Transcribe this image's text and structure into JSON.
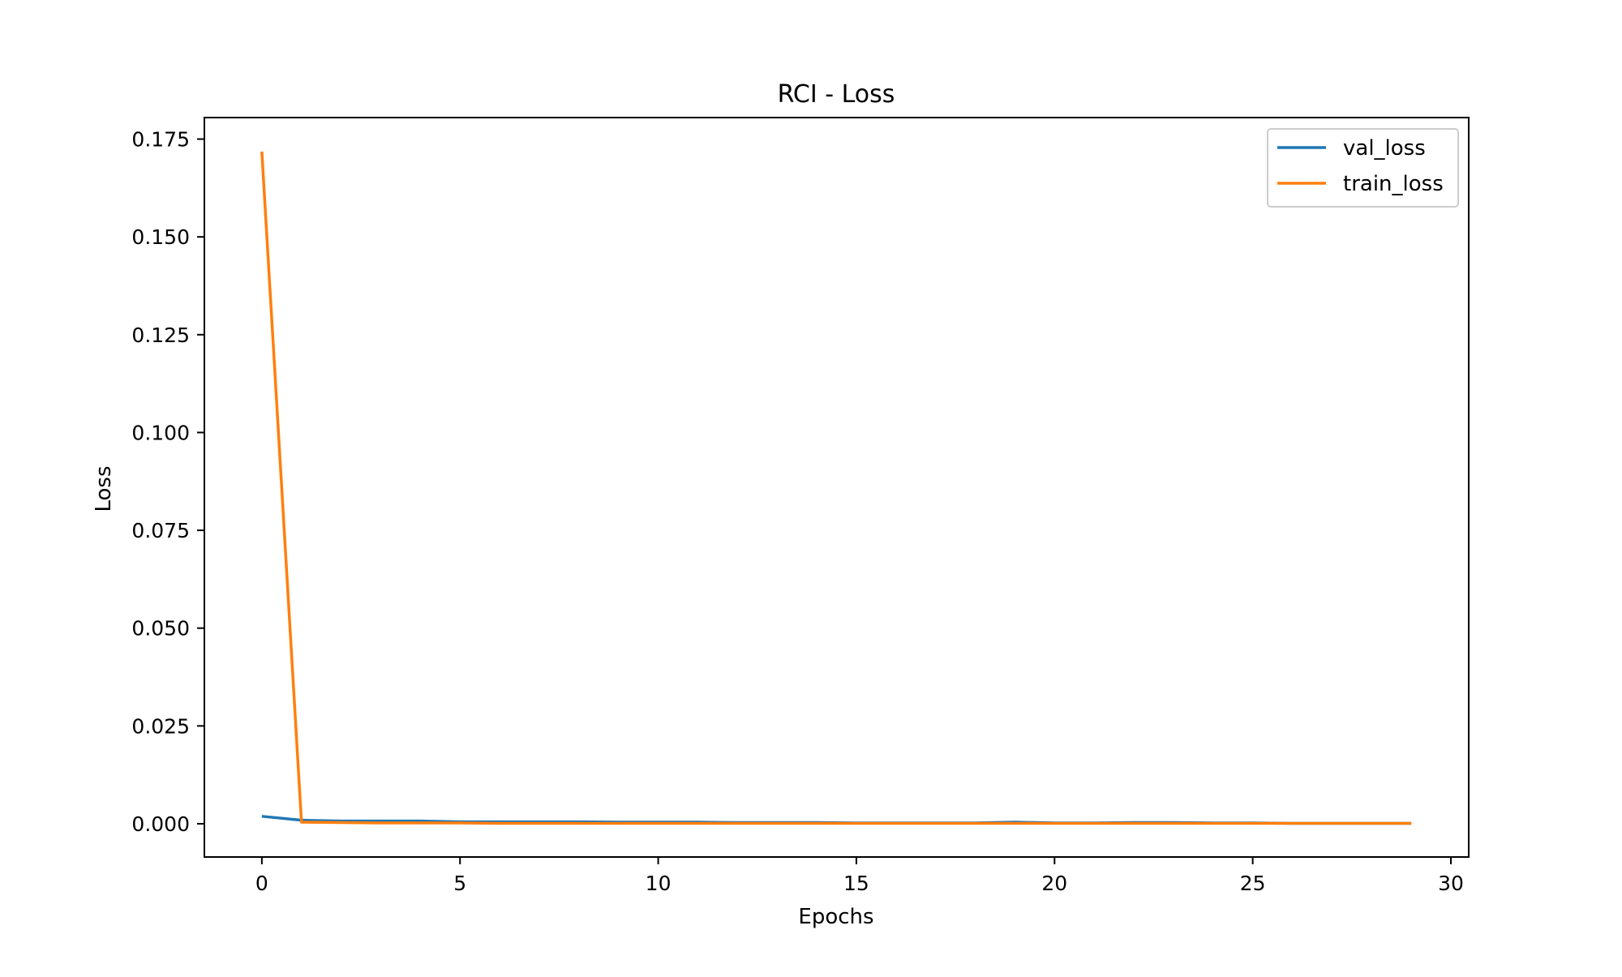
{
  "chart_data": {
    "type": "line",
    "title": "RCI - Loss",
    "xlabel": "Epochs",
    "ylabel": "Loss",
    "xlim": [
      -1.45,
      30.45
    ],
    "ylim": [
      -0.0085,
      0.1805
    ],
    "xticks": [
      0,
      5,
      10,
      15,
      20,
      25,
      30
    ],
    "xtick_labels": [
      "0",
      "5",
      "10",
      "15",
      "20",
      "25",
      "30"
    ],
    "yticks": [
      0.0,
      0.025,
      0.05,
      0.075,
      0.1,
      0.125,
      0.15,
      0.175
    ],
    "ytick_labels": [
      "0.000",
      "0.025",
      "0.050",
      "0.075",
      "0.100",
      "0.125",
      "0.150",
      "0.175"
    ],
    "grid": false,
    "legend": {
      "position": "upper right"
    },
    "x": [
      0,
      1,
      2,
      3,
      4,
      5,
      6,
      7,
      8,
      9,
      10,
      11,
      12,
      13,
      14,
      15,
      16,
      17,
      18,
      19,
      20,
      21,
      22,
      23,
      24,
      25,
      26,
      27,
      28,
      29
    ],
    "series": [
      {
        "name": "val_loss",
        "color": "#1f77b4",
        "values": [
          0.0019,
          0.0009,
          0.0007,
          0.0007,
          0.0007,
          0.0005,
          0.0005,
          0.0005,
          0.0005,
          0.0004,
          0.0004,
          0.0004,
          0.0003,
          0.0003,
          0.0003,
          0.0002,
          0.0002,
          0.0002,
          0.0002,
          0.0004,
          0.0002,
          0.0002,
          0.0003,
          0.0003,
          0.0002,
          0.0002,
          0.0001,
          0.0001,
          0.0001,
          0.0001
        ]
      },
      {
        "name": "train_loss",
        "color": "#ff7f0e",
        "values": [
          0.1718,
          0.0004,
          0.0003,
          0.0002,
          0.0002,
          0.0002,
          0.0001,
          0.0001,
          0.0001,
          0.0001,
          0.0001,
          0.0001,
          0.0001,
          0.0001,
          0.0001,
          0.0001,
          0.0001,
          0.0001,
          0.0001,
          0.0001,
          0.0001,
          0.0001,
          0.0001,
          0.0001,
          0.0001,
          0.0001,
          0.0001,
          0.0001,
          0.0001,
          0.0001
        ]
      }
    ]
  }
}
